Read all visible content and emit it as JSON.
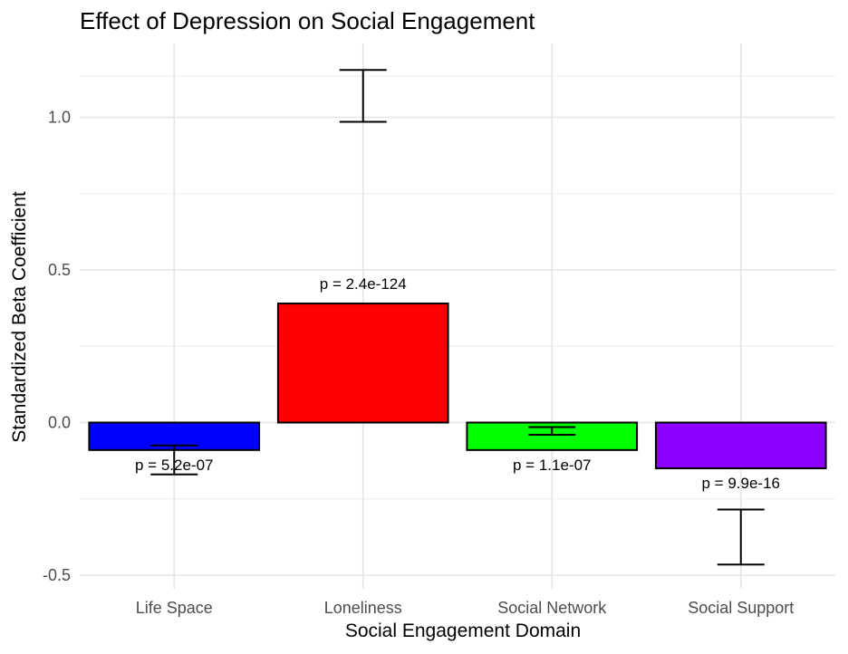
{
  "chart_data": {
    "type": "bar",
    "title": "Effect of Depression on Social Engagement",
    "xlabel": "Social Engagement Domain",
    "ylabel": "Standardized Beta Coefficient",
    "categories": [
      "Life Space",
      "Loneliness",
      "Social Network",
      "Social Support"
    ],
    "values": [
      -0.09,
      0.39,
      -0.09,
      -0.15
    ],
    "error_bars": [
      {
        "low": -0.17,
        "high": -0.075
      },
      {
        "low": 0.985,
        "high": 1.155
      },
      {
        "low": -0.04,
        "high": -0.015
      },
      {
        "low": -0.465,
        "high": -0.285
      }
    ],
    "p_labels": [
      "p = 5.2e-07",
      "p = 2.4e-124",
      "p = 1.1e-07",
      "p = 9.9e-16"
    ],
    "colors": [
      "#0000ff",
      "#ff0000",
      "#00ff00",
      "#8b00ff"
    ],
    "yticks": [
      -0.5,
      0.0,
      0.5,
      1.0
    ],
    "ytick_labels": [
      "-0.5",
      "0.0",
      "0.5",
      "1.0"
    ],
    "ylim": [
      -0.55,
      1.22
    ],
    "grid": true,
    "legend": "none"
  }
}
